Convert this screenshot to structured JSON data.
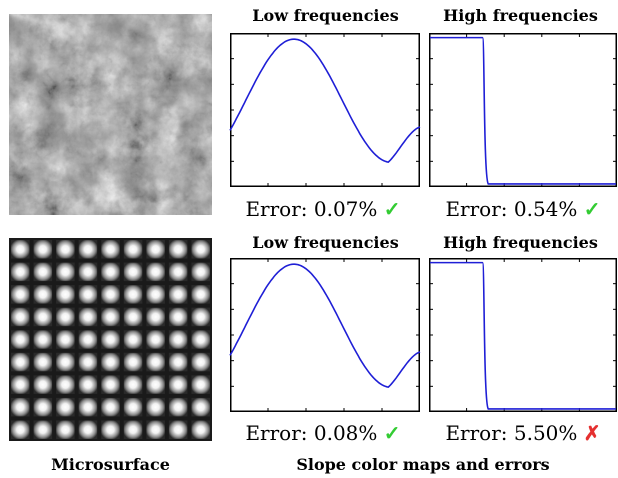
{
  "rows": [
    {
      "plot_titles": [
        "Low frequencies",
        "High frequencies"
      ],
      "errors": [
        {
          "text": "Error: 0.07%",
          "mark": "✓",
          "status": "ok"
        },
        {
          "text": "Error: 0.54%",
          "mark": "✓",
          "status": "ok"
        }
      ]
    },
    {
      "plot_titles": [
        "Low frequencies",
        "High frequencies"
      ],
      "errors": [
        {
          "text": "Error: 0.08%",
          "mark": "✓",
          "status": "ok"
        },
        {
          "text": "Error: 5.50%",
          "mark": "✗",
          "status": "bad"
        }
      ]
    }
  ],
  "captions": {
    "left": "Microsurface",
    "right": "Slope color maps and errors"
  },
  "chart_data": [
    {
      "type": "line",
      "curve": "low-frequency wave",
      "ylim": [
        0,
        1
      ],
      "values": [
        0.5,
        0.96,
        0.7,
        0.18,
        0.39
      ]
    },
    {
      "type": "line",
      "curve": "high-frequency step",
      "ylim": [
        0,
        1
      ],
      "values": [
        0.97,
        0.97,
        0.02,
        0.02
      ]
    },
    {
      "type": "line",
      "curve": "low-frequency wave",
      "ylim": [
        0,
        1
      ],
      "values": [
        0.5,
        0.96,
        0.7,
        0.18,
        0.39
      ]
    },
    {
      "type": "line",
      "curve": "high-frequency step",
      "ylim": [
        0,
        1
      ],
      "values": [
        0.97,
        0.97,
        0.02,
        0.02
      ]
    }
  ],
  "colors": {
    "curve": "#1f1fd6",
    "check": "#33cc33",
    "cross": "#e53030"
  }
}
